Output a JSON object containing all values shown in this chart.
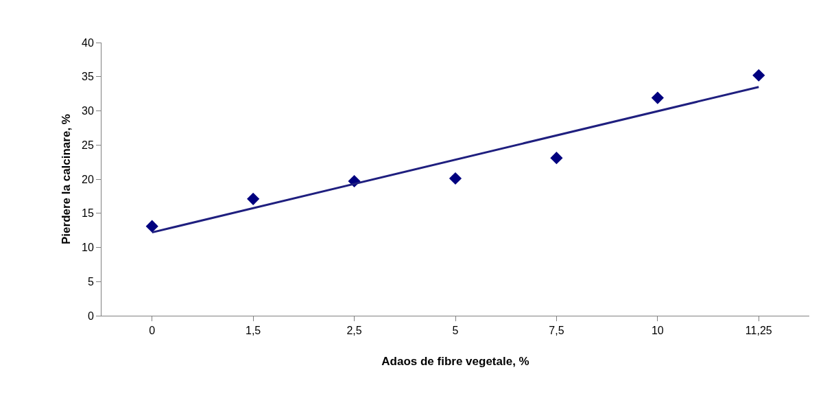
{
  "chart_data": {
    "type": "scatter",
    "xlabel": "Adaos de fibre vegetale, %",
    "ylabel": "Pierdere la calcinare, %",
    "categories": [
      "0",
      "1,5",
      "2,5",
      "5",
      "7,5",
      "10",
      "11,25"
    ],
    "series": [
      {
        "color": "#00007f",
        "marker": "diamond",
        "values": [
          13.1,
          17.1,
          19.7,
          20.1,
          23.1,
          31.9,
          35.2
        ]
      },
      {
        "type": "line",
        "color": "#1f1f7f",
        "x": [
          "0",
          "11,25"
        ],
        "values": [
          12.2,
          33.5
        ],
        "line_style": "solid"
      }
    ],
    "ylim": [
      0,
      40
    ],
    "yticks": [
      0,
      5,
      10,
      15,
      20,
      25,
      30,
      35,
      40
    ]
  }
}
